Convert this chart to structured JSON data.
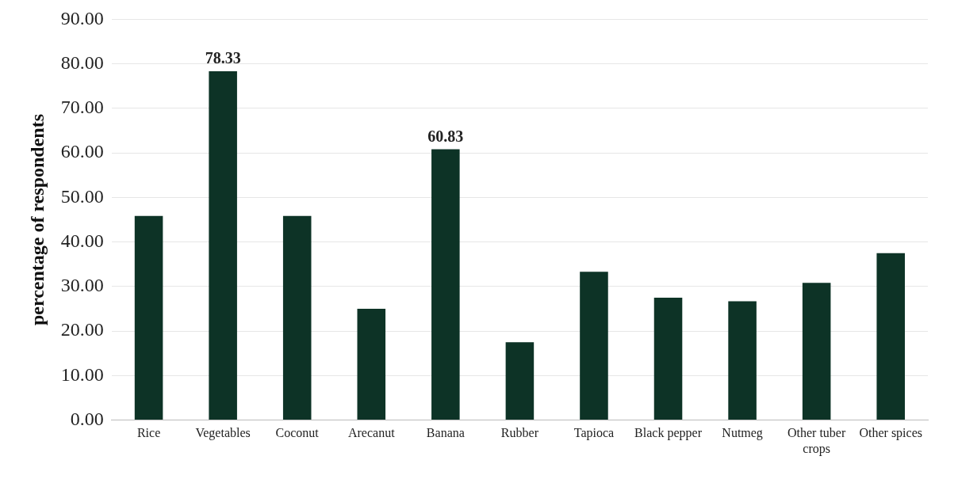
{
  "chart_data": {
    "type": "bar",
    "ylabel": "percentage of respondents",
    "categories": [
      "Rice",
      "Vegetables",
      "Coconut",
      "Arecanut",
      "Banana",
      "Rubber",
      "Tapioca",
      "Black pepper",
      "Nutmeg",
      "Other tuber crops",
      "Other spices"
    ],
    "values": [
      45.83,
      78.33,
      45.83,
      25.0,
      60.83,
      17.5,
      33.33,
      27.5,
      26.67,
      30.83,
      37.5
    ],
    "value_labels": [
      null,
      "78.33",
      null,
      null,
      "60.83",
      null,
      null,
      null,
      null,
      null,
      null
    ],
    "color": "#0d3326",
    "ylim": [
      0,
      90
    ],
    "yticks": [
      {
        "value": 0,
        "label": "0.00"
      },
      {
        "value": 10,
        "label": "10.00"
      },
      {
        "value": 20,
        "label": "20.00"
      },
      {
        "value": 30,
        "label": "30.00"
      },
      {
        "value": 40,
        "label": "40.00"
      },
      {
        "value": 50,
        "label": "50.00"
      },
      {
        "value": 60,
        "label": "60.00"
      },
      {
        "value": 70,
        "label": "70.00"
      },
      {
        "value": 80,
        "label": "80.00"
      },
      {
        "value": 90,
        "label": "90.00"
      }
    ],
    "grid": "y"
  }
}
